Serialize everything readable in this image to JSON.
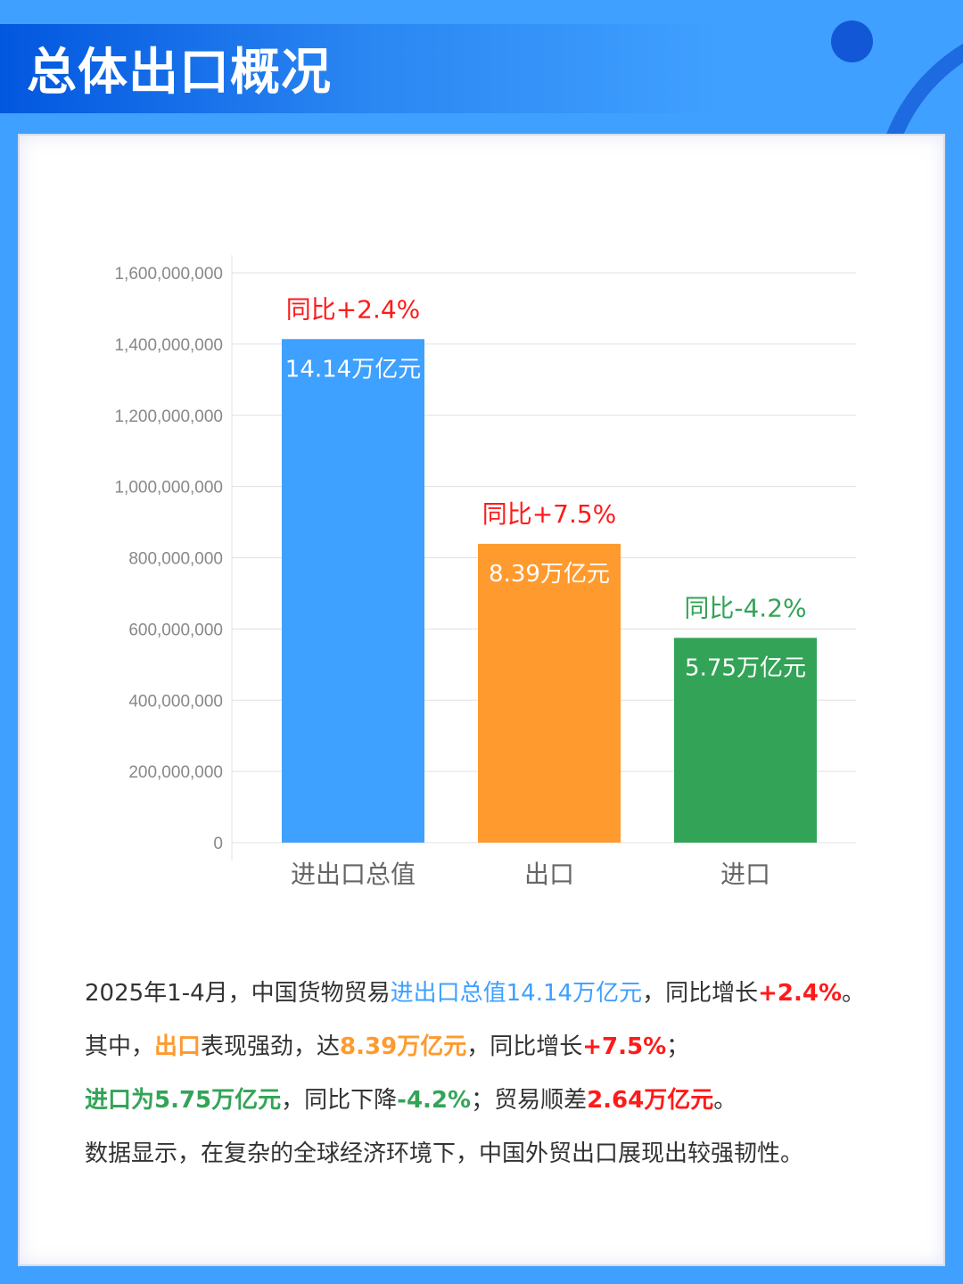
{
  "header": {
    "title": "总体出口概况"
  },
  "colors": {
    "blue": "#3ea0ff",
    "orange": "#ff9a2e",
    "green": "#33a457",
    "red": "#ff1a1a",
    "text": "#333333"
  },
  "chart_data": {
    "type": "bar",
    "categories": [
      "进出口总值",
      "出口",
      "进口"
    ],
    "values": [
      1414000000,
      839000000,
      575000000
    ],
    "bar_colors": [
      "#3ea0ff",
      "#ff9a2e",
      "#33a457"
    ],
    "data_labels": [
      "14.14万亿元",
      "8.39万亿元",
      "5.75万亿元"
    ],
    "annotations": [
      {
        "text": "同比+2.4%",
        "color": "#ff1a1a"
      },
      {
        "text": "同比+7.5%",
        "color": "#ff1a1a"
      },
      {
        "text": "同比-4.2%",
        "color": "#33a457"
      }
    ],
    "yticks": [
      "0",
      "200,000,000",
      "400,000,000",
      "600,000,000",
      "800,000,000",
      "1,000,000,000",
      "1,200,000,000",
      "1,400,000,000",
      "1,600,000,000"
    ],
    "ylim": [
      0,
      1600000000
    ],
    "grid": true,
    "title": "",
    "xlabel": "",
    "ylabel": ""
  },
  "paragraphs": [
    [
      {
        "t": "2025年1-4月，中国货物贸易",
        "c": "text"
      },
      {
        "t": "进出口总值14.14万亿元",
        "c": "blue"
      },
      {
        "t": "，同比增长",
        "c": "text"
      },
      {
        "t": "+2.4%",
        "c": "red",
        "b": true
      },
      {
        "t": "。",
        "c": "text"
      }
    ],
    [
      {
        "t": "其中，",
        "c": "text"
      },
      {
        "t": "出口",
        "c": "orange",
        "b": true
      },
      {
        "t": "表现强劲，达",
        "c": "text"
      },
      {
        "t": "8.39万亿元",
        "c": "orange",
        "b": true
      },
      {
        "t": "，同比增长",
        "c": "text"
      },
      {
        "t": "+7.5%",
        "c": "red",
        "b": true
      },
      {
        "t": "；",
        "c": "text"
      }
    ],
    [
      {
        "t": "进口为5.75万亿元",
        "c": "green",
        "b": true
      },
      {
        "t": "，同比下降",
        "c": "text"
      },
      {
        "t": "-4.2%",
        "c": "green",
        "b": true
      },
      {
        "t": "；贸易顺差",
        "c": "text"
      },
      {
        "t": "2.64万亿元",
        "c": "red",
        "b": true
      },
      {
        "t": "。",
        "c": "text"
      }
    ],
    [
      {
        "t": "数据显示，在复杂的全球经济环境下，中国外贸出口展现出较强韧性。",
        "c": "text"
      }
    ]
  ]
}
